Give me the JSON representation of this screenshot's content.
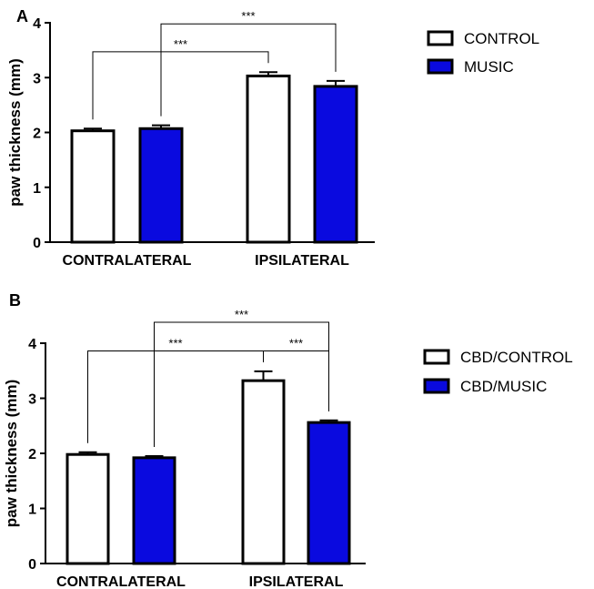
{
  "colors": {
    "control": "#ffffff",
    "music": "#0a0adf",
    "axis": "#000000"
  },
  "chart_data": [
    {
      "type": "bar",
      "panel": "A",
      "ylabel": "paw thickness (mm)",
      "ylim": [
        0,
        4
      ],
      "yticks": [
        "0",
        "1",
        "2",
        "3",
        "4"
      ],
      "categories": [
        "CONTRALATERAL",
        "IPSILATERAL"
      ],
      "series": [
        {
          "name": "CONTROL",
          "color": "#ffffff",
          "values": [
            2.03,
            3.03
          ],
          "errors": [
            0.04,
            0.07
          ]
        },
        {
          "name": "MUSIC",
          "color": "#0a0adf",
          "values": [
            2.07,
            2.84
          ],
          "errors": [
            0.06,
            0.1
          ]
        }
      ],
      "legend_position": "top-right",
      "annotations": [
        {
          "text": "***",
          "from": [
            "CONTRALATERAL",
            "CONTROL"
          ],
          "to": [
            "IPSILATERAL",
            "CONTROL"
          ],
          "level": 3.47
        },
        {
          "text": "***",
          "from": [
            "CONTRALATERAL",
            "MUSIC"
          ],
          "to": [
            "IPSILATERAL",
            "MUSIC"
          ],
          "level": 3.98
        }
      ]
    },
    {
      "type": "bar",
      "panel": "B",
      "ylabel": "paw thickness (mm)",
      "ylim": [
        0,
        4
      ],
      "yticks": [
        "0",
        "1",
        "2",
        "3",
        "4"
      ],
      "categories": [
        "CONTRALATERAL",
        "IPSILATERAL"
      ],
      "series": [
        {
          "name": "CBD/CONTROL",
          "color": "#ffffff",
          "values": [
            1.98,
            3.32
          ],
          "errors": [
            0.04,
            0.17
          ]
        },
        {
          "name": "CBD/MUSIC",
          "color": "#0a0adf",
          "values": [
            1.92,
            2.56
          ],
          "errors": [
            0.03,
            0.04
          ]
        }
      ],
      "legend_position": "top-right",
      "annotations": [
        {
          "text": "***",
          "from": [
            "CONTRALATERAL",
            "CBD/CONTROL"
          ],
          "to": [
            "IPSILATERAL",
            "CBD/CONTROL"
          ],
          "level": 3.86
        },
        {
          "text": "***",
          "from": [
            "CONTRALATERAL",
            "CBD/MUSIC"
          ],
          "to": [
            "IPSILATERAL",
            "CBD/MUSIC"
          ],
          "level": 4.38
        },
        {
          "text": "***",
          "from": [
            "IPSILATERAL",
            "CBD/CONTROL"
          ],
          "to": [
            "IPSILATERAL",
            "CBD/MUSIC"
          ],
          "level": 3.86
        }
      ]
    }
  ]
}
